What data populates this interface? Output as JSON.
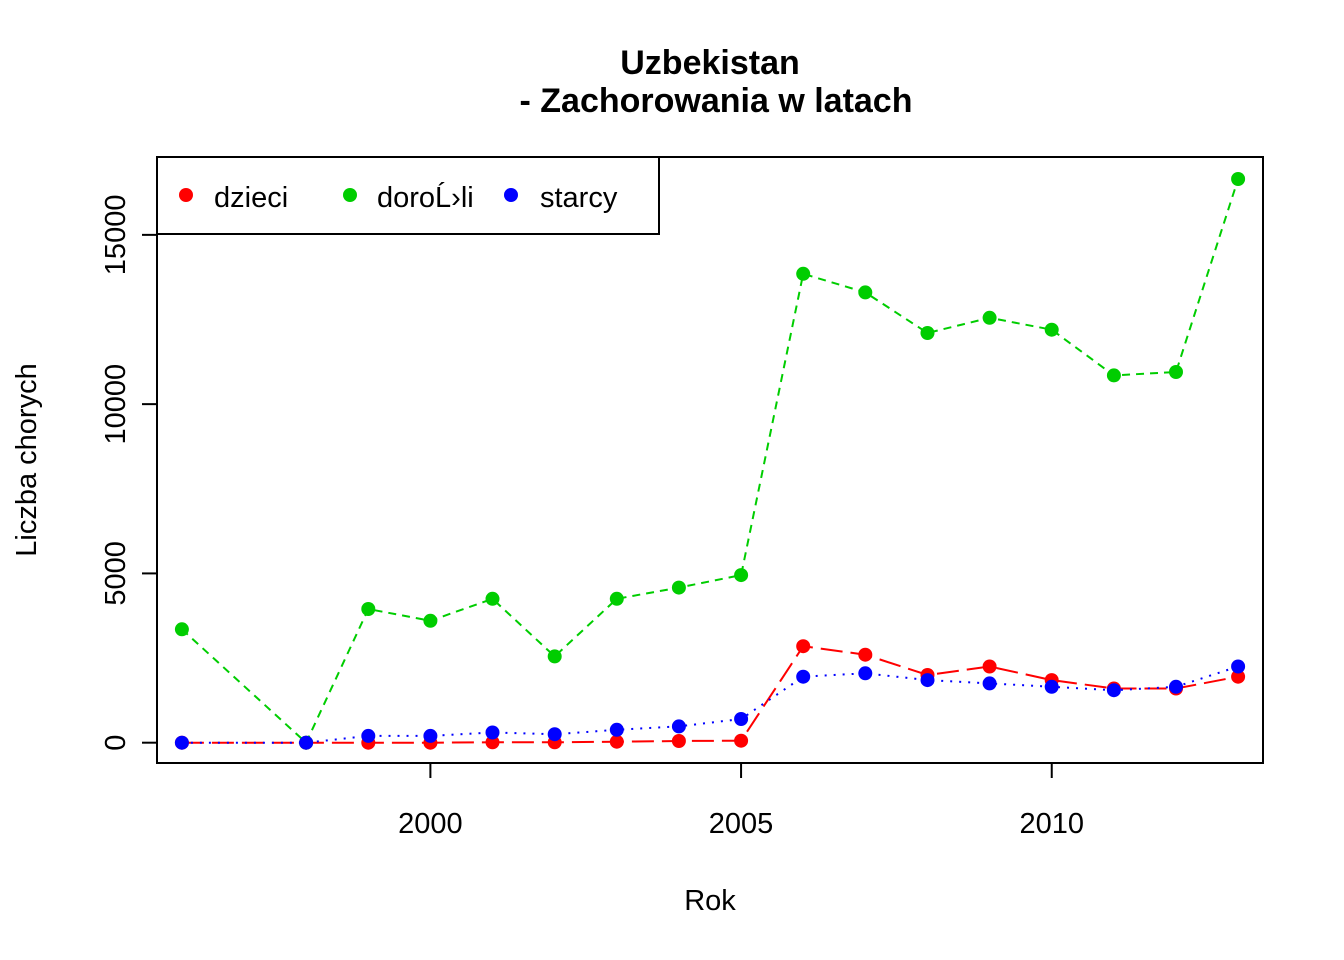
{
  "chart_data": {
    "type": "line",
    "title_line1": "Uzbekistan",
    "title_line2": "- Zachorowania w latach",
    "xlabel": "Rok",
    "ylabel": "Liczba chorych",
    "xlim": [
      1995.6,
      2013.4
    ],
    "ylim": [
      -600,
      17300
    ],
    "x_ticks": [
      2000,
      2005,
      2010
    ],
    "y_ticks": [
      0,
      5000,
      10000,
      15000
    ],
    "x": [
      1996,
      1998,
      1999,
      2000,
      2001,
      2002,
      2003,
      2004,
      2005,
      2006,
      2007,
      2008,
      2009,
      2010,
      2011,
      2012,
      2013
    ],
    "series": [
      {
        "name": "dzieci",
        "color": "#ff0000",
        "line_style": "longdash",
        "values": [
          0,
          0,
          0,
          0,
          10,
          10,
          30,
          50,
          60,
          2850,
          2600,
          2000,
          2250,
          1850,
          1600,
          1600,
          1950
        ]
      },
      {
        "name": "doroĹ›li",
        "color": "#00cd00",
        "line_style": "dashed",
        "values": [
          3350,
          0,
          3950,
          3600,
          4250,
          2550,
          4250,
          4580,
          4950,
          13850,
          13300,
          12100,
          12550,
          12200,
          10850,
          10950,
          16650
        ]
      },
      {
        "name": "starcy",
        "color": "#0000ff",
        "line_style": "dotted",
        "values": [
          0,
          0,
          200,
          200,
          300,
          250,
          380,
          480,
          700,
          1950,
          2050,
          1850,
          1750,
          1650,
          1550,
          1650,
          2250
        ]
      }
    ],
    "legend_position": "top-left",
    "grid": false
  }
}
